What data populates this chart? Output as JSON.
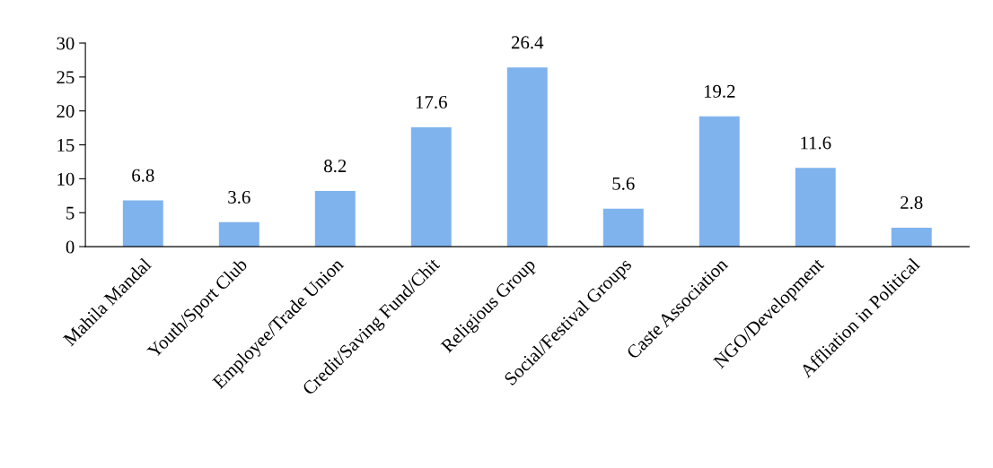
{
  "chart_data": {
    "type": "bar",
    "categories": [
      "Mahila Mandal",
      "Youth/Sport Club",
      "Employee/Trade Union",
      "Credit/Saving Fund/Chit",
      "Religious Group",
      "Social/Festival Groups",
      "Caste Association",
      "NGO/Development",
      "Affliation in Political"
    ],
    "values": [
      6.8,
      3.6,
      8.2,
      17.6,
      26.4,
      5.6,
      19.2,
      11.6,
      2.8
    ],
    "color": "#7fb3ee",
    "ylim": [
      0,
      30
    ],
    "yticks": [
      0,
      5,
      10,
      15,
      20,
      25,
      30
    ],
    "data_labels": true,
    "grid": false
  }
}
